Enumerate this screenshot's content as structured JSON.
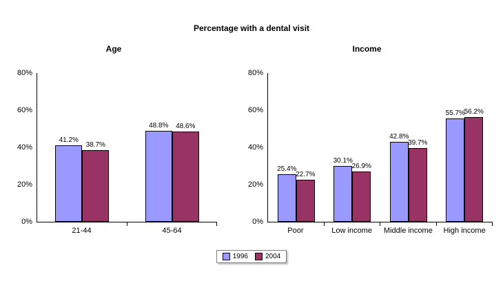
{
  "title": "Percentage with a dental visit",
  "legend": {
    "series": [
      "1996",
      "2004"
    ],
    "colors": [
      "#9999ff",
      "#993366"
    ]
  },
  "chart_data": [
    {
      "type": "bar",
      "title": "Age",
      "categories": [
        "21-44",
        "45-64"
      ],
      "series": [
        {
          "name": "1996",
          "color": "#9999ff",
          "values": [
            41.2,
            48.8
          ]
        },
        {
          "name": "2004",
          "color": "#993366",
          "values": [
            38.7,
            48.6
          ]
        }
      ],
      "value_label_suffix": "%",
      "yticks": [
        "0%",
        "20%",
        "40%",
        "60%",
        "80%"
      ],
      "ylim": [
        0,
        80
      ],
      "grid": false,
      "legend_position": "bottom-center"
    },
    {
      "type": "bar",
      "title": "Income",
      "categories": [
        "Poor",
        "Low income",
        "Middle income",
        "High income"
      ],
      "series": [
        {
          "name": "1996",
          "color": "#9999ff",
          "values": [
            25.4,
            30.1,
            42.8,
            55.7
          ]
        },
        {
          "name": "2004",
          "color": "#993366",
          "values": [
            22.7,
            26.9,
            39.7,
            56.2
          ]
        }
      ],
      "value_label_suffix": "%",
      "yticks": [
        "0%",
        "20%",
        "40%",
        "60%",
        "80%"
      ],
      "ylim": [
        0,
        80
      ],
      "grid": false,
      "legend_position": "bottom-center"
    }
  ]
}
